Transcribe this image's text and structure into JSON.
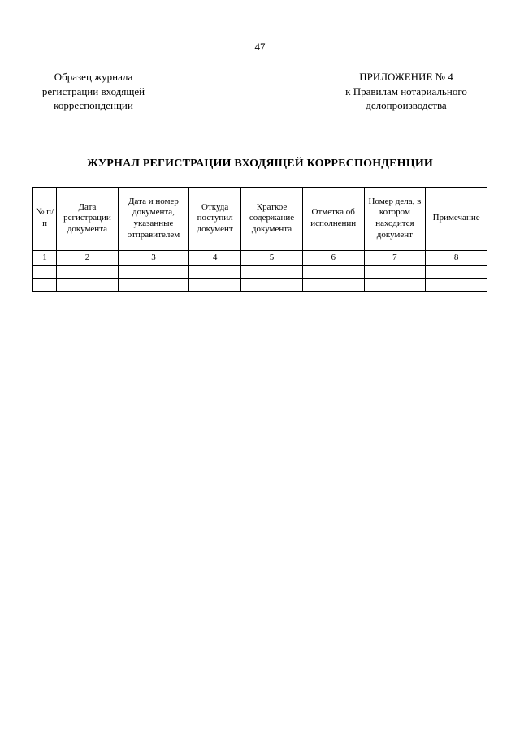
{
  "page_number": "47",
  "header_left": "Образец журнала регистрации входящей корреспонденции",
  "header_right_line1": "ПРИЛОЖЕНИЕ № 4",
  "header_right_line2": "к Правилам нотариального делопроизводства",
  "title": "ЖУРНАЛ РЕГИСТРАЦИИ ВХОДЯЩЕЙ КОРРЕСПОНДЕНЦИИ",
  "table": {
    "columns": [
      "№ п/п",
      "Дата регистрации документа",
      "Дата и номер документа, указанные отправителем",
      "Откуда поступил документ",
      "Краткое содержание документа",
      "Отметка об исполнении",
      "Номер дела, в котором находится документ",
      "Примечание"
    ],
    "number_row": [
      "1",
      "2",
      "3",
      "4",
      "5",
      "6",
      "7",
      "8"
    ],
    "empty_rows": 2,
    "border_color": "#000000",
    "background_color": "#ffffff",
    "header_fontsize": 11,
    "col_widths_pct": [
      5,
      13,
      15,
      11,
      13,
      13,
      13,
      13
    ]
  }
}
